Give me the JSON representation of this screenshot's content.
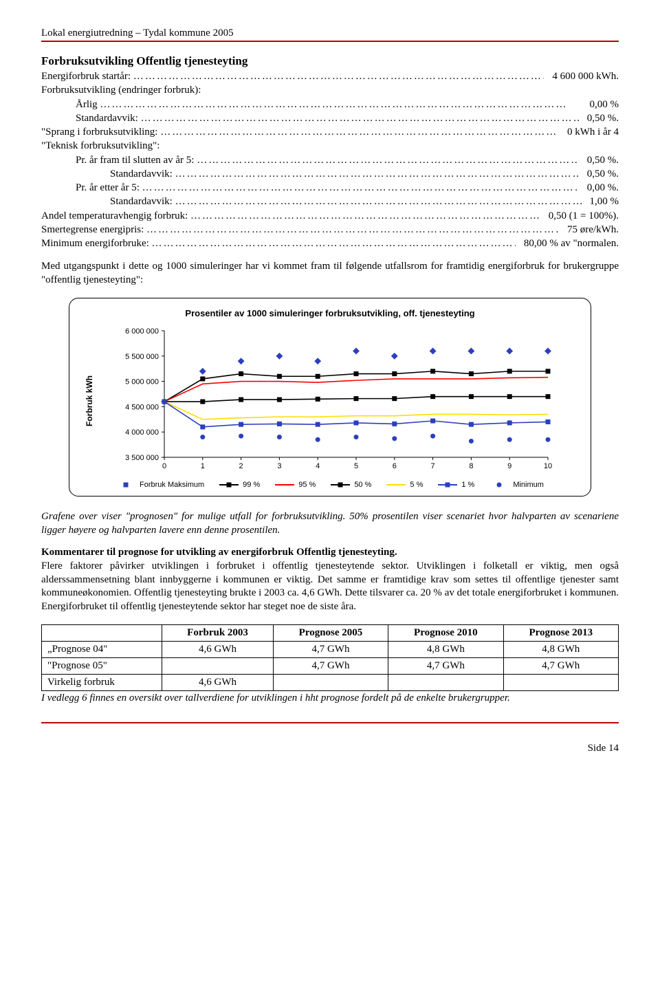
{
  "header": "Lokal energiutredning – Tydal kommune 2005",
  "section_title": "Forbruksutvikling Offentlig tjenesteyting",
  "params": [
    {
      "indent": 0,
      "label": "Energiforbruk startår: ",
      "value": "4 600 000 kWh."
    },
    {
      "indent": 0,
      "label": "Forbruksutvikling (endringer forbruk):",
      "value": ""
    },
    {
      "indent": 1,
      "label": "Årlig ",
      "value": "0,00 %"
    },
    {
      "indent": 1,
      "label": "Standardavvik: ",
      "value": "0,50 %."
    },
    {
      "indent": 0,
      "label": "\"Sprang i forbruksutvikling: ",
      "value": "0 kWh i år 4"
    },
    {
      "indent": 0,
      "label": "\"Teknisk forbruksutvikling\":",
      "value": ""
    },
    {
      "indent": 1,
      "label": "Pr. år fram til slutten av år 5: ",
      "value": "0,50 %."
    },
    {
      "indent": 2,
      "label": "Standardavvik: ",
      "value": "0,50 %."
    },
    {
      "indent": 1,
      "label": "Pr. år etter år 5: ",
      "value": "0,00 %."
    },
    {
      "indent": 2,
      "label": "Standardavvik: ",
      "value": "1,00 %"
    },
    {
      "indent": 0,
      "label": "Andel temperaturavhengig forbruk: ",
      "value": "0,50 (1 = 100%)."
    },
    {
      "indent": 0,
      "label": "Smertegrense energipris: ",
      "value": "75 øre/kWh."
    },
    {
      "indent": 0,
      "label": "Minimum energiforbruke: ",
      "value": "80,00 % av \"normalen."
    }
  ],
  "intro_para": "Med utgangspunkt i dette og 1000 simuleringer har vi kommet fram til følgende utfallsrom for framtidig energiforbruk for brukergruppe \"offentlig tjenesteyting\":",
  "chart": {
    "title": "Prosentiler av 1000 simuleringer forbruksutvikling, off. tjenesteyting",
    "ylabel": "Forbruk kWh",
    "xlabel_note": "\"",
    "x_ticks": [
      0,
      1,
      2,
      3,
      4,
      5,
      6,
      7,
      8,
      9,
      10
    ],
    "y_ticks": [
      3500000,
      4000000,
      4500000,
      5000000,
      5500000,
      6000000
    ],
    "y_tick_labels": [
      "3 500 000",
      "4 000 000",
      "4 500 000",
      "5 000 000",
      "5 500 000",
      "6 000 000"
    ],
    "ylim": [
      3500000,
      6000000
    ],
    "series": [
      {
        "name": "Forbruk Maksimum",
        "color": "#2b3fbf",
        "marker": "diamond",
        "line": false,
        "values": [
          4600000,
          5200000,
          5400000,
          5500000,
          5400000,
          5600000,
          5500000,
          5600000,
          5600000,
          5600000,
          5600000
        ]
      },
      {
        "name": "99 %",
        "color": "#000000",
        "marker": "square",
        "line": true,
        "values": [
          4600000,
          5050000,
          5150000,
          5100000,
          5100000,
          5150000,
          5150000,
          5200000,
          5150000,
          5200000,
          5200000
        ]
      },
      {
        "name": "95 %",
        "color": "#ff0000",
        "marker": "none",
        "line": true,
        "values": [
          4600000,
          4950000,
          5000000,
          5000000,
          4980000,
          5020000,
          5050000,
          5050000,
          5050000,
          5070000,
          5080000
        ]
      },
      {
        "name": "50 %",
        "color": "#000000",
        "marker": "square",
        "line": true,
        "values": [
          4600000,
          4600000,
          4640000,
          4640000,
          4650000,
          4660000,
          4660000,
          4700000,
          4700000,
          4700000,
          4700000
        ]
      },
      {
        "name": "5 %",
        "color": "#ffdd00",
        "marker": "none",
        "line": true,
        "values": [
          4600000,
          4250000,
          4280000,
          4300000,
          4300000,
          4320000,
          4320000,
          4350000,
          4350000,
          4340000,
          4350000
        ]
      },
      {
        "name": "1 %",
        "color": "#2b3fbf",
        "marker": "square",
        "line": true,
        "values": [
          4600000,
          4100000,
          4150000,
          4160000,
          4150000,
          4180000,
          4160000,
          4220000,
          4150000,
          4180000,
          4200000
        ]
      },
      {
        "name": "Minimum",
        "color": "#2b3fbf",
        "marker": "circle",
        "line": false,
        "values": [
          4600000,
          3900000,
          3920000,
          3900000,
          3850000,
          3900000,
          3870000,
          3920000,
          3820000,
          3850000,
          3850000
        ]
      }
    ],
    "background_color": "#ffffff",
    "grid": false,
    "font_family": "Arial",
    "title_fontsize": 13,
    "axis_fontsize": 11,
    "legend_fontsize": 11,
    "marker_size": 7,
    "line_width": 1.6
  },
  "italic_para": "Grafene over viser \"prognosen\" for mulige utfall for forbruksutvikling. 50% prosentilen viser scenariet hvor halvparten av scenariene ligger høyere og halvparten lavere enn denne prosentilen.",
  "subhead": "Kommentarer til prognose for utvikling av energiforbruk Offentlig tjenesteyting.",
  "body_para": "Flere faktorer påvirker utviklingen i forbruket i offentlig tjenesteytende sektor. Utviklingen i folketall er viktig, men også alderssammensetning blant innbyggerne i kommunen er viktig. Det samme er framtidige krav som settes til offentlige tjenester samt kommuneøkonomien. Offentlig tjenesteyting brukte i 2003 ca. 4,6 GWh. Dette tilsvarer ca. 20 % av det totale energiforbruket i kommunen. Energiforbruket til offentlig tjenesteytende sektor har steget noe de siste åra.",
  "table": {
    "columns": [
      "",
      "Forbruk 2003",
      "Prognose 2005",
      "Prognose 2010",
      "Prognose 2013"
    ],
    "rows": [
      [
        "„Prognose 04\"",
        "4,6 GWh",
        "4,7 GWh",
        "4,8 GWh",
        "4,8 GWh"
      ],
      [
        "\"Prognose 05\"",
        "",
        "4,7 GWh",
        "4,7 GWh",
        "4,7 GWh"
      ],
      [
        "Virkelig forbruk",
        "4,6 GWh",
        "",
        "",
        ""
      ]
    ]
  },
  "table_caption": "I vedlegg 6 finnes en oversikt over tallverdiene for utviklingen i hht prognose fordelt på de enkelte brukergrupper.",
  "footer": "Side 14"
}
